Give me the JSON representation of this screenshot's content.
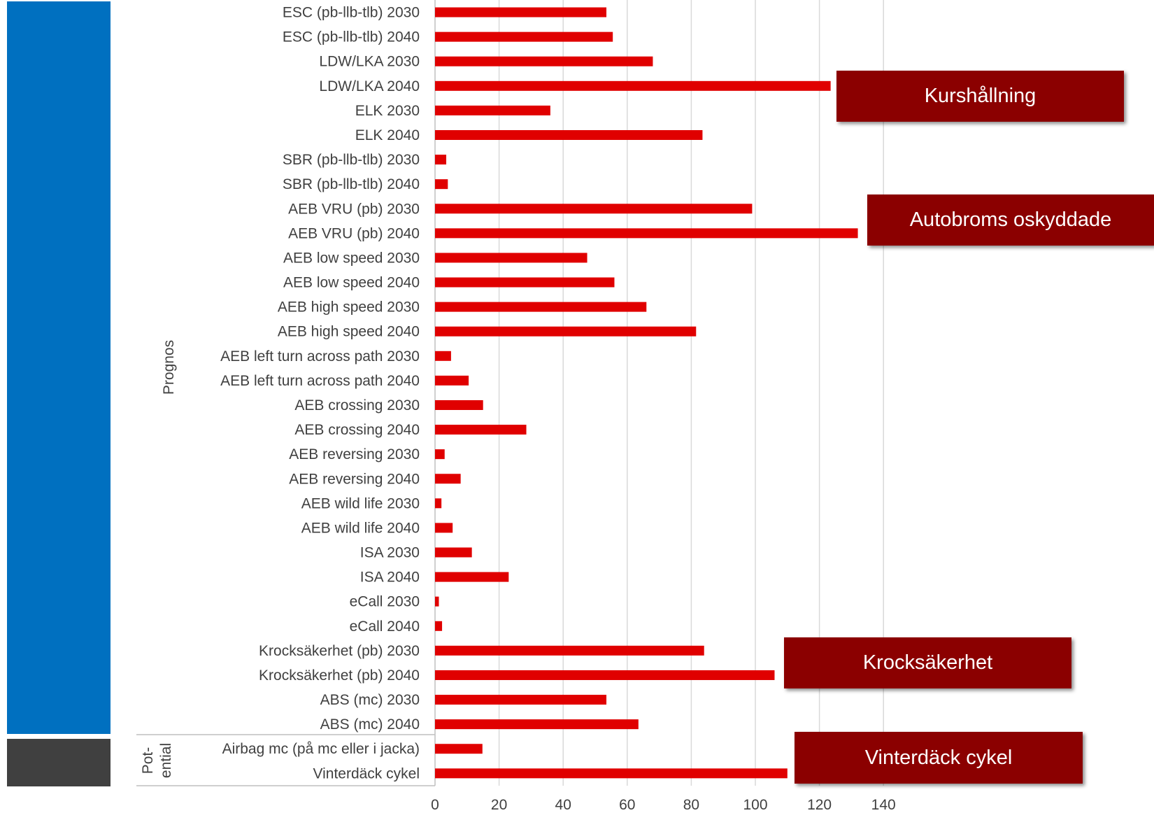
{
  "chart_data": {
    "type": "bar",
    "orientation": "horizontal",
    "categories": [
      "ESC (pb-llb-tlb) 2030",
      "ESC (pb-llb-tlb) 2040",
      "LDW/LKA 2030",
      "LDW/LKA 2040",
      "ELK 2030",
      "ELK 2040",
      "SBR (pb-llb-tlb) 2030",
      "SBR (pb-llb-tlb) 2040",
      "AEB VRU (pb) 2030",
      "AEB VRU (pb) 2040",
      "AEB low speed 2030",
      "AEB low speed 2040",
      "AEB high speed 2030",
      "AEB high speed 2040",
      "AEB left turn across path 2030",
      "AEB left turn across path 2040",
      "AEB crossing 2030",
      "AEB crossing 2040",
      "AEB reversing 2030",
      "AEB reversing 2040",
      "AEB wild life 2030",
      "AEB wild life 2040",
      "ISA 2030",
      "ISA 2040",
      "eCall 2030",
      "eCall 2040",
      "Krocksäkerhet (pb) 2030",
      "Krocksäkerhet (pb) 2040",
      "ABS (mc) 2030",
      "ABS (mc) 2040",
      "Airbag mc (på mc eller i jacka)",
      "Vinterdäck cykel"
    ],
    "values": [
      53.5,
      55.5,
      68,
      123.5,
      36,
      83.5,
      3.5,
      4,
      99,
      132,
      47.5,
      56,
      66,
      81.5,
      5,
      10.5,
      15,
      28.5,
      3,
      8,
      2,
      5.5,
      11.5,
      23,
      1.2,
      2.2,
      84,
      106,
      53.5,
      63.5,
      14.8,
      110
    ],
    "xlim": [
      0,
      140
    ],
    "x_ticks": [
      "0",
      "20",
      "40",
      "60",
      "80",
      "100",
      "120",
      "140"
    ],
    "grid": "vertical",
    "bar_color": "#e00000",
    "groups": [
      {
        "label": "Prognos",
        "from": 0,
        "to": 29,
        "color": "#0070c0"
      },
      {
        "label_line1": "Pot-",
        "label_line2": "ential",
        "from": 30,
        "to": 31,
        "color": "#404040"
      }
    ],
    "callouts": [
      {
        "text": "Kurshållning",
        "color": "#8b0000"
      },
      {
        "text": "Autobroms oskyddade",
        "color": "#8b0000"
      },
      {
        "text": "Krocksäkerhet",
        "color": "#8b0000"
      },
      {
        "text": "Vinterdäck cykel",
        "color": "#8b0000"
      }
    ]
  }
}
